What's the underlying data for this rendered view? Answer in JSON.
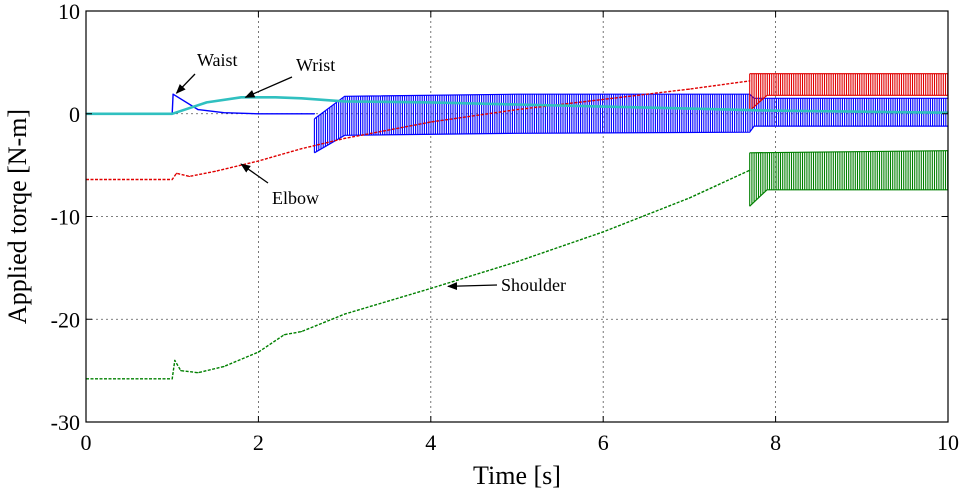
{
  "chart_data": {
    "type": "line",
    "xlabel": "Time [s]",
    "ylabel": "Applied torqe [N-m]",
    "xlim": [
      0,
      10
    ],
    "ylim": [
      -30,
      10
    ],
    "xticks": [
      0,
      2,
      4,
      6,
      8,
      10
    ],
    "yticks": [
      -30,
      -20,
      -10,
      0,
      10
    ],
    "xtick_labels": [
      "0",
      "2",
      "4",
      "6",
      "8",
      "10"
    ],
    "ytick_labels": [
      "-30",
      "-20",
      "-10",
      "0",
      "10"
    ],
    "grid": true,
    "series": [
      {
        "name": "Waist",
        "color": "#0000ff",
        "x": [
          0,
          1.0,
          1.01,
          1.3,
          1.6,
          2.0,
          2.5,
          2.65
        ],
        "y": [
          0,
          0,
          1.9,
          0.4,
          0.1,
          0.0,
          0.0,
          0.0
        ],
        "oscillation": {
          "from": 2.65,
          "to": 10,
          "upper": [
            [
              2.65,
              -0.5
            ],
            [
              3.0,
              1.7
            ],
            [
              5.0,
              1.9
            ],
            [
              7.7,
              1.9
            ],
            [
              7.75,
              1.5
            ],
            [
              10,
              1.5
            ]
          ],
          "lower": [
            [
              2.65,
              -3.8
            ],
            [
              3.0,
              -2.1
            ],
            [
              5.0,
              -1.9
            ],
            [
              7.7,
              -1.8
            ],
            [
              7.75,
              -1.2
            ],
            [
              10,
              -1.2
            ]
          ]
        }
      },
      {
        "name": "Wrist",
        "color": "#30c0c0",
        "x": [
          0,
          1.0,
          1.4,
          1.8,
          2.2,
          2.5,
          3.0,
          4.0,
          5.0,
          6.0,
          7.0,
          8.0,
          9.0,
          10.0
        ],
        "y": [
          0,
          0,
          1.1,
          1.6,
          1.6,
          1.5,
          1.2,
          1.1,
          0.9,
          0.7,
          0.5,
          0.3,
          0.2,
          0.1
        ]
      },
      {
        "name": "Elbow",
        "color": "#e00000",
        "x": [
          0,
          1.0,
          1.05,
          1.2,
          1.5,
          2.0,
          2.5,
          3.0,
          3.5,
          4.0,
          5.0,
          6.0,
          7.0,
          7.7
        ],
        "y": [
          -6.4,
          -6.4,
          -5.8,
          -6.1,
          -5.6,
          -4.6,
          -3.4,
          -2.4,
          -1.6,
          -0.8,
          0.4,
          1.4,
          2.4,
          3.2
        ],
        "oscillation": {
          "from": 7.7,
          "to": 10,
          "upper": [
            [
              7.7,
              3.9
            ],
            [
              10,
              3.9
            ]
          ],
          "lower": [
            [
              7.7,
              0.3
            ],
            [
              7.9,
              1.8
            ],
            [
              10,
              1.8
            ]
          ]
        }
      },
      {
        "name": "Shoulder",
        "color": "#008000",
        "x": [
          0,
          1.0,
          1.03,
          1.1,
          1.3,
          1.6,
          2.0,
          2.3,
          2.5,
          3.0,
          4.0,
          5.0,
          6.0,
          7.0,
          7.7
        ],
        "y": [
          -25.8,
          -25.8,
          -24.0,
          -25.0,
          -25.2,
          -24.6,
          -23.2,
          -21.5,
          -21.2,
          -19.5,
          -17.0,
          -14.4,
          -11.5,
          -8.2,
          -5.5
        ],
        "oscillation": {
          "from": 7.7,
          "to": 10,
          "upper": [
            [
              7.7,
              -3.8
            ],
            [
              10,
              -3.6
            ]
          ],
          "lower": [
            [
              7.7,
              -9.0
            ],
            [
              7.9,
              -7.4
            ],
            [
              10,
              -7.4
            ]
          ]
        }
      }
    ],
    "annotations": [
      {
        "text": "Waist",
        "target_x": 1.05,
        "target_y": 2.0
      },
      {
        "text": "Wrist",
        "target_x": 1.85,
        "target_y": 1.6
      },
      {
        "text": "Elbow",
        "target_x": 1.8,
        "target_y": -4.9
      },
      {
        "text": "Shoulder",
        "target_x": 4.2,
        "target_y": -16.8
      }
    ]
  }
}
